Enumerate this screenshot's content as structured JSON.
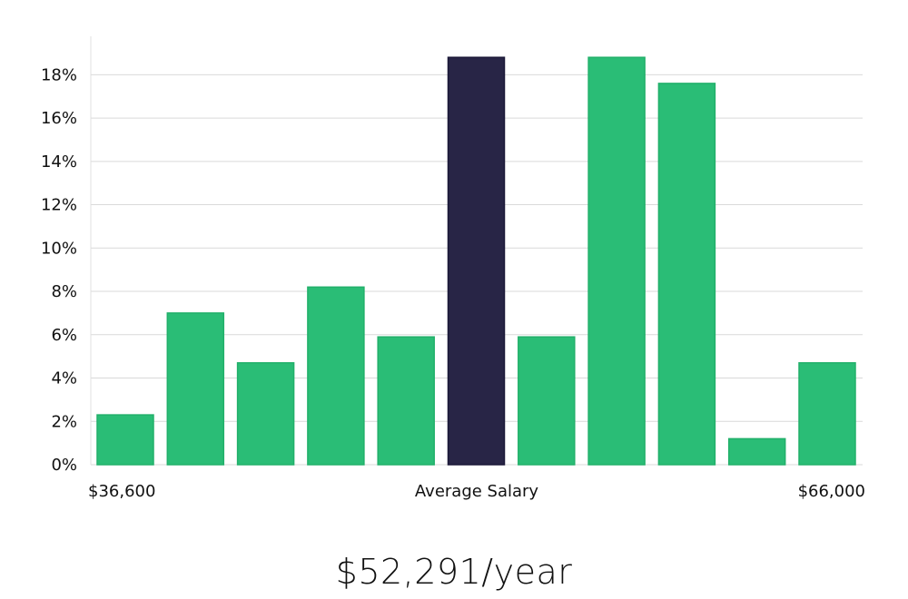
{
  "chart_data": {
    "type": "bar",
    "bin_labels": {
      "left": "$36,600",
      "center": "Average Salary",
      "right": "$66,000"
    },
    "values": [
      2.3,
      7.0,
      4.7,
      8.2,
      5.9,
      18.8,
      5.9,
      18.8,
      17.6,
      1.2,
      4.7
    ],
    "highlight_index": 5,
    "y_ticks": [
      "0%",
      "2%",
      "4%",
      "6%",
      "8%",
      "10%",
      "12%",
      "14%",
      "16%",
      "18%"
    ],
    "ylim": [
      0,
      19.8
    ],
    "grid": true,
    "colors": {
      "bar": "#2abd76",
      "highlight": "#282546",
      "grid": "#d9d9d9"
    }
  },
  "headline": "$52,291/year"
}
